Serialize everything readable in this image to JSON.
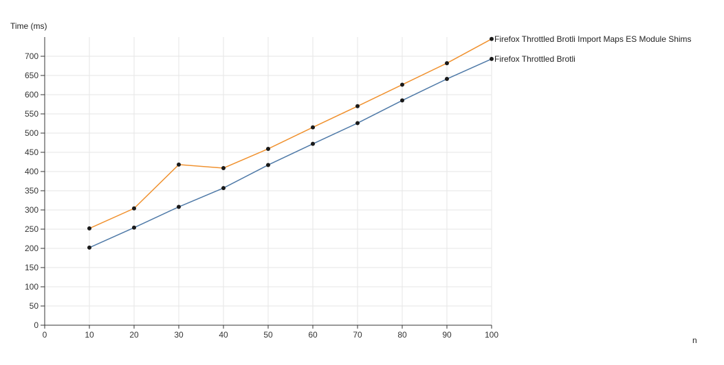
{
  "chart_data": {
    "type": "line",
    "ylabel": "Time (ms)",
    "xlabel": "n",
    "xlim": [
      0,
      100
    ],
    "ylim": [
      0,
      750
    ],
    "x_ticks": [
      0,
      10,
      20,
      30,
      40,
      50,
      60,
      70,
      80,
      90,
      100
    ],
    "y_ticks": [
      0,
      50,
      100,
      150,
      200,
      250,
      300,
      350,
      400,
      450,
      500,
      550,
      600,
      650,
      700
    ],
    "grid": true,
    "legend": "end-of-line labels",
    "x": [
      10,
      20,
      30,
      40,
      50,
      60,
      70,
      80,
      90,
      100
    ],
    "series": [
      {
        "name": "Firefox Throttled Brotli Import Maps ES Module Shims",
        "color": "#f0912e",
        "values": [
          252,
          304,
          418,
          409,
          459,
          515,
          570,
          626,
          682,
          745
        ]
      },
      {
        "name": "Firefox Throttled Brotli",
        "color": "#4e79a7",
        "values": [
          202,
          254,
          308,
          357,
          417,
          472,
          526,
          585,
          641,
          693
        ]
      }
    ],
    "marker_color": "#1a1a1a"
  }
}
